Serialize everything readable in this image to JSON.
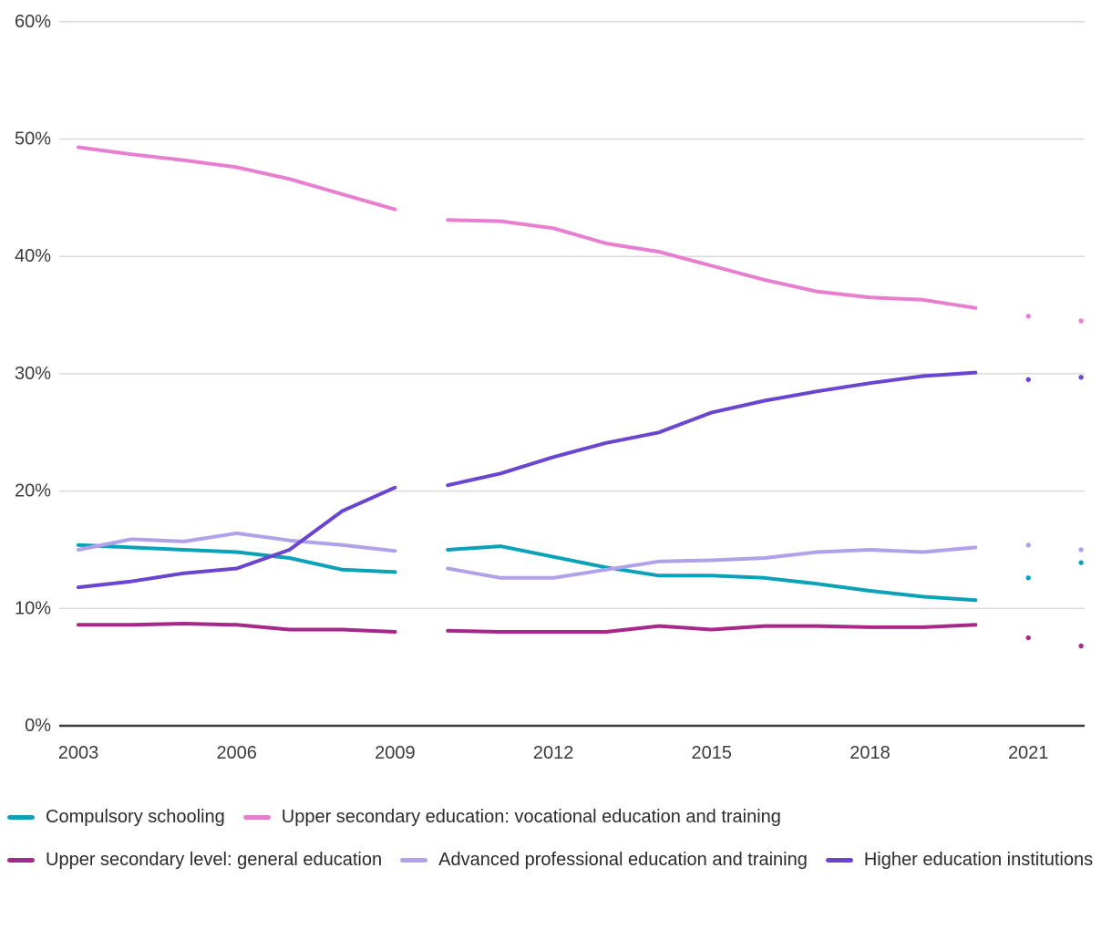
{
  "chart_data": {
    "type": "line",
    "title": "",
    "xlabel": "",
    "ylabel": "",
    "grid": "horizontal",
    "legend_position": "bottom",
    "ylim": [
      0,
      60
    ],
    "xlim": [
      2002.6,
      2022.1
    ],
    "y_ticks": [
      {
        "value": 0,
        "label": "0%"
      },
      {
        "value": 10,
        "label": "10%"
      },
      {
        "value": 20,
        "label": "20%"
      },
      {
        "value": 30,
        "label": "30%"
      },
      {
        "value": 40,
        "label": "40%"
      },
      {
        "value": 50,
        "label": "50%"
      },
      {
        "value": 60,
        "label": "60%"
      }
    ],
    "x_ticks": [
      {
        "value": 2003,
        "label": "2003"
      },
      {
        "value": 2006,
        "label": "2006"
      },
      {
        "value": 2009,
        "label": "2009"
      },
      {
        "value": 2012,
        "label": "2012"
      },
      {
        "value": 2015,
        "label": "2015"
      },
      {
        "value": 2018,
        "label": "2018"
      },
      {
        "value": 2021,
        "label": "2021"
      }
    ],
    "note": "lines broken between 2009 and 2010; isolated dots for 2021 and 2022",
    "series": [
      {
        "name": "Compulsory schooling",
        "slug": "compulsory-schooling",
        "color": "#0aa2b8",
        "segments": [
          {
            "x": [
              2003,
              2004,
              2005,
              2006,
              2007,
              2008,
              2009
            ],
            "y": [
              15.4,
              15.2,
              15.0,
              14.8,
              14.3,
              13.3,
              13.1
            ]
          },
          {
            "x": [
              2010,
              2011,
              2012,
              2013,
              2014,
              2015,
              2016,
              2017,
              2018,
              2019,
              2020
            ],
            "y": [
              15.0,
              15.3,
              14.4,
              13.5,
              12.8,
              12.8,
              12.6,
              12.1,
              11.5,
              11.0,
              10.7
            ]
          }
        ],
        "points": {
          "x": [
            2021,
            2022
          ],
          "y": [
            12.6,
            13.9
          ]
        }
      },
      {
        "name": "Upper secondary education: vocational education and training",
        "slug": "vocational-education",
        "color": "#e77ed0",
        "segments": [
          {
            "x": [
              2003,
              2004,
              2005,
              2006,
              2007,
              2008,
              2009
            ],
            "y": [
              49.3,
              48.7,
              48.2,
              47.6,
              46.6,
              45.3,
              44.0
            ]
          },
          {
            "x": [
              2010,
              2011,
              2012,
              2013,
              2014,
              2015,
              2016,
              2017,
              2018,
              2019,
              2020
            ],
            "y": [
              43.1,
              43.0,
              42.4,
              41.1,
              40.4,
              39.2,
              38.0,
              37.0,
              36.5,
              36.3,
              35.6
            ]
          }
        ],
        "points": {
          "x": [
            2021,
            2022
          ],
          "y": [
            34.9,
            34.5
          ]
        }
      },
      {
        "name": "Upper secondary level: general education",
        "slug": "general-education",
        "color": "#a62889",
        "segments": [
          {
            "x": [
              2003,
              2004,
              2005,
              2006,
              2007,
              2008,
              2009
            ],
            "y": [
              8.6,
              8.6,
              8.7,
              8.6,
              8.2,
              8.2,
              8.0
            ]
          },
          {
            "x": [
              2010,
              2011,
              2012,
              2013,
              2014,
              2015,
              2016,
              2017,
              2018,
              2019,
              2020
            ],
            "y": [
              8.1,
              8.0,
              8.0,
              8.0,
              8.5,
              8.2,
              8.5,
              8.5,
              8.4,
              8.4,
              8.6
            ]
          }
        ],
        "points": {
          "x": [
            2021,
            2022
          ],
          "y": [
            7.5,
            6.8
          ]
        }
      },
      {
        "name": "Advanced professional education and training",
        "slug": "advanced-professional",
        "color": "#b0a1e8",
        "segments": [
          {
            "x": [
              2003,
              2004,
              2005,
              2006,
              2007,
              2008,
              2009
            ],
            "y": [
              15.0,
              15.9,
              15.7,
              16.4,
              15.8,
              15.4,
              14.9
            ]
          },
          {
            "x": [
              2010,
              2011,
              2012,
              2013,
              2014,
              2015,
              2016,
              2017,
              2018,
              2019,
              2020
            ],
            "y": [
              13.4,
              12.6,
              12.6,
              13.3,
              14.0,
              14.1,
              14.3,
              14.8,
              15.0,
              14.8,
              15.2
            ]
          }
        ],
        "points": {
          "x": [
            2021,
            2022
          ],
          "y": [
            15.4,
            15.0
          ]
        }
      },
      {
        "name": "Higher education institutions",
        "slug": "higher-education",
        "color": "#6a45d0",
        "segments": [
          {
            "x": [
              2003,
              2004,
              2005,
              2006,
              2007,
              2008,
              2009
            ],
            "y": [
              11.8,
              12.3,
              13.0,
              13.4,
              15.0,
              18.3,
              20.3
            ]
          },
          {
            "x": [
              2010,
              2011,
              2012,
              2013,
              2014,
              2015,
              2016,
              2017,
              2018,
              2019,
              2020
            ],
            "y": [
              20.5,
              21.5,
              22.9,
              24.1,
              25.0,
              26.7,
              27.7,
              28.5,
              29.2,
              29.8,
              30.1
            ]
          }
        ],
        "points": {
          "x": [
            2021,
            2022
          ],
          "y": [
            29.5,
            29.7
          ]
        }
      }
    ],
    "style": {
      "grid_color": "#d9d9d9",
      "axis_color": "#3a3a3a",
      "tick_label_color": "#3b3b3b",
      "line_width": 4,
      "dot_radius": 2.7
    }
  }
}
